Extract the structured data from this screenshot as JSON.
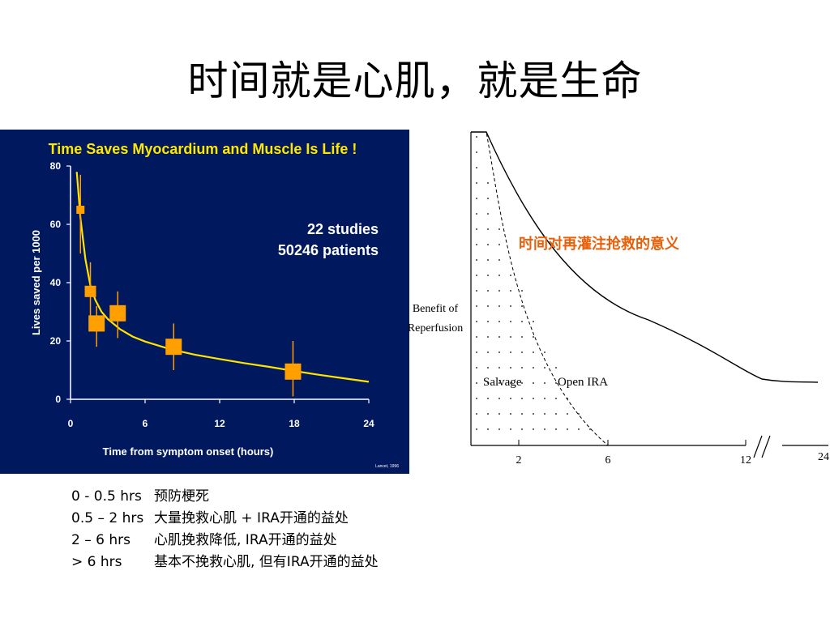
{
  "slide": {
    "title": "时间就是心肌，就是生命"
  },
  "colors": {
    "left_bg": "#00185e",
    "title_yellow": "#ffe800",
    "curve_yellow": "#ffe400",
    "marker_orange": "#ffa000",
    "axis_white": "#ffffff",
    "annotation_orange": "#e8600a"
  },
  "chart_data": [
    {
      "type": "scatter",
      "title": "Time Saves Myocardium and Muscle Is Life !",
      "xlabel": "Time from symptom onset (hours)",
      "ylabel": "Lives saved per 1000",
      "xlim": [
        0,
        24
      ],
      "ylim": [
        0,
        80
      ],
      "x_ticks": [
        "0",
        "6",
        "12",
        "18",
        "24"
      ],
      "y_ticks": [
        "0",
        "20",
        "40",
        "60",
        "80"
      ],
      "annotation": [
        "22 studies",
        "50246 patients"
      ],
      "footnote": "Lancet, 1996",
      "points": [
        {
          "x": 0.8,
          "y": 65,
          "err_low": 50,
          "err_high": 77,
          "size": "small"
        },
        {
          "x": 1.6,
          "y": 37,
          "err_low": 28,
          "err_high": 47,
          "size": "medium"
        },
        {
          "x": 2.1,
          "y": 26,
          "err_low": 18,
          "err_high": 32,
          "size": "large"
        },
        {
          "x": 3.8,
          "y": 29.5,
          "err_low": 21,
          "err_high": 37,
          "size": "large"
        },
        {
          "x": 8.3,
          "y": 18,
          "err_low": 10,
          "err_high": 26,
          "size": "large"
        },
        {
          "x": 17.9,
          "y": 9.5,
          "err_low": 1,
          "err_high": 20,
          "size": "large"
        }
      ],
      "fit_curve": {
        "x": [
          0.5,
          0.8,
          1.2,
          1.6,
          2,
          2.5,
          3,
          4,
          5,
          6,
          8,
          10,
          12,
          14,
          16,
          18,
          20,
          22,
          24
        ],
        "y": [
          78,
          62,
          48,
          39,
          34,
          30,
          27.5,
          24,
          21.5,
          19.8,
          17.2,
          15.3,
          13.8,
          12.4,
          11.1,
          9.7,
          8.4,
          7.2,
          6
        ]
      }
    },
    {
      "type": "line",
      "title": "时间对再灌注抢救的意义",
      "ylabel": "Benefit of Reperfusion",
      "x_ticks": [
        "2",
        "6",
        "12",
        "24"
      ],
      "series": [
        {
          "name": "Salvage",
          "style": "dashed"
        },
        {
          "name": "Open IRA",
          "style": "solid"
        }
      ]
    }
  ],
  "notes": [
    {
      "range": "0 - 0.5 hrs",
      "text": "预防梗死"
    },
    {
      "range": "0.5 – 2 hrs",
      "text": "大量挽救心肌 + IRA开通的益处"
    },
    {
      "range": "2 – 6 hrs",
      "text": "心肌挽救降低, IRA开通的益处"
    },
    {
      "range": "> 6 hrs",
      "text": "基本不挽救心肌, 但有IRA开通的益处"
    }
  ]
}
